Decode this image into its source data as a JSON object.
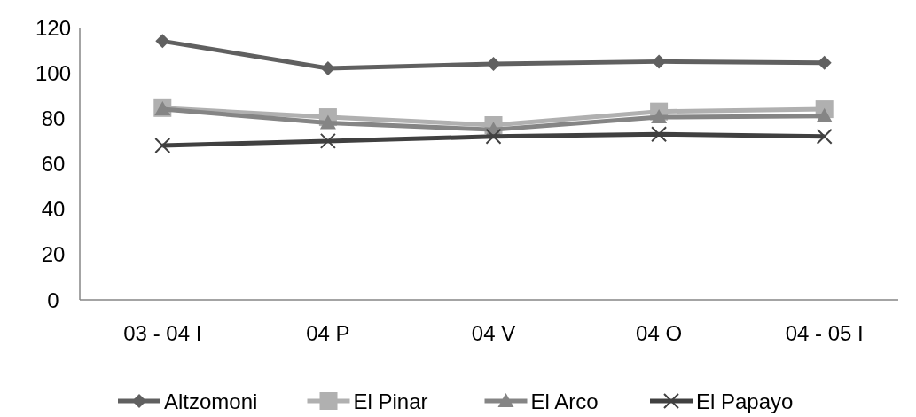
{
  "chart_data": {
    "type": "line",
    "categories": [
      "03 - 04 I",
      "04 P",
      "04 V",
      "04 O",
      "04 - 05 I"
    ],
    "ylim": [
      0,
      120
    ],
    "yticks": [
      0,
      20,
      40,
      60,
      80,
      100,
      120
    ],
    "grid": false,
    "legend": "bottom",
    "series": [
      {
        "name": "Altzomoni",
        "color": "#606060",
        "marker": "diamond",
        "values": [
          114,
          102,
          104,
          105,
          104.5
        ]
      },
      {
        "name": "El Pinar",
        "color": "#b0b0b0",
        "marker": "square",
        "values": [
          84.5,
          80.5,
          77,
          83,
          84
        ]
      },
      {
        "name": "El Arco",
        "color": "#858585",
        "marker": "triangle",
        "values": [
          84,
          78,
          75,
          80.5,
          81
        ]
      },
      {
        "name": "El Papayo",
        "color": "#404040",
        "marker": "cross",
        "values": [
          68,
          70,
          72,
          73,
          72
        ]
      }
    ]
  }
}
